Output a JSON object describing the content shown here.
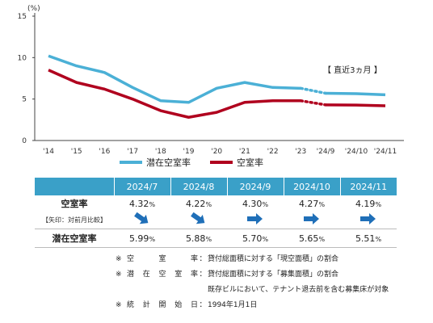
{
  "chart_data": {
    "type": "line",
    "y_unit": "(%)",
    "ylim": [
      0,
      15
    ],
    "yticks": [
      "0",
      "5",
      "10",
      "15"
    ],
    "x_annual": [
      "'14",
      "'15",
      "'16",
      "'17",
      "'18",
      "'19",
      "'20",
      "'21",
      "'22",
      "'23"
    ],
    "x_monthly": [
      "'24/9",
      "'24/10",
      "'24/11"
    ],
    "series": [
      {
        "name": "潜在空室率",
        "color": "#4bb0d6",
        "annual": [
          10.2,
          9.0,
          8.2,
          6.4,
          4.8,
          4.6,
          6.3,
          7.0,
          6.4,
          6.3
        ],
        "monthly": [
          5.7,
          5.65,
          5.51
        ]
      },
      {
        "name": "空室率",
        "color": "#b0001e",
        "annual": [
          8.5,
          7.0,
          6.2,
          5.0,
          3.6,
          2.8,
          3.4,
          4.6,
          4.8,
          4.8
        ],
        "monthly": [
          4.3,
          4.27,
          4.19
        ]
      }
    ],
    "annotation": "【 直近3ヵ月 】"
  },
  "table": {
    "headers": [
      "2024/7",
      "2024/8",
      "2024/9",
      "2024/10",
      "2024/11"
    ],
    "row1_label": "空室率",
    "row1_values": [
      "4.32",
      "4.22",
      "4.30",
      "4.27",
      "4.19"
    ],
    "row2_label": "【矢印：対前月比較】",
    "row2_arrows": [
      "down",
      "down",
      "right",
      "right",
      "right"
    ],
    "row3_label": "潜在空室率",
    "row3_values": [
      "5.99",
      "5.88",
      "5.70",
      "5.65",
      "5.51"
    ],
    "unit": "%"
  },
  "notes": [
    {
      "mark": "※",
      "term": [
        "空",
        "室",
        "率"
      ],
      "text": "貸付総面積に対する「現空面積」の割合"
    },
    {
      "mark": "※",
      "term": [
        "潜",
        "在",
        "空",
        "室",
        "率"
      ],
      "text": "貸付総面積に対する「募集面積」の割合"
    },
    {
      "mark": "",
      "term": [],
      "text": "既存ビルにおいて、テナント退去前を含む募集床が対象"
    },
    {
      "mark": "※",
      "term": [
        "統",
        "計",
        "開",
        "始",
        "日"
      ],
      "text": "1994年1月1日"
    }
  ],
  "colors": {
    "potential": "#4bb0d6",
    "vacancy": "#b0001e",
    "header": "#3aa0c8",
    "arrow": "#1f6fb8"
  }
}
